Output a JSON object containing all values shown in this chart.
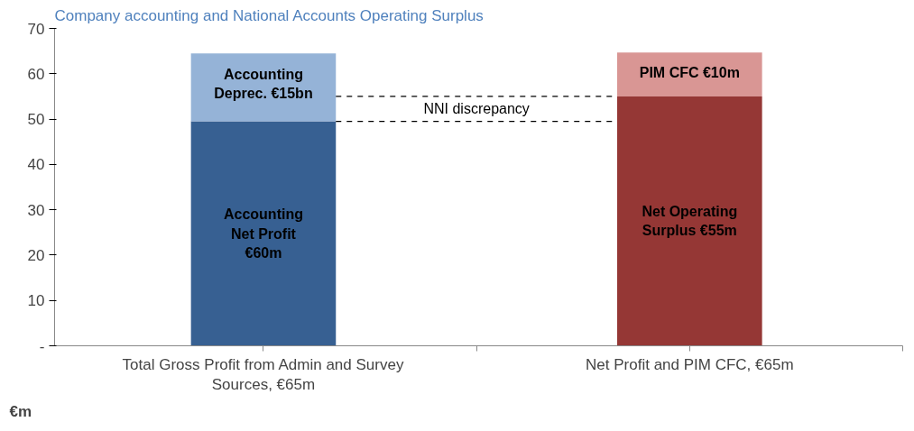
{
  "chart_data": {
    "type": "bar",
    "stacked": true,
    "title": "Company accounting and National Accounts Operating Surplus",
    "ylabel": "€m",
    "categories": [
      "Total Gross Profit from Admin and Survey Sources, €65m",
      "Net Profit and PIM CFC, €65m"
    ],
    "series": [
      {
        "colors": [
          "#376092",
          "#953735"
        ],
        "values": [
          49.5,
          55
        ]
      },
      {
        "colors": [
          "#95b3d7",
          "#d99694"
        ],
        "values": [
          15,
          9.7
        ]
      }
    ],
    "ylim": [
      0,
      70
    ],
    "yticks": [
      {
        "value": 0,
        "label": "-"
      },
      10,
      20,
      30,
      40,
      50,
      60,
      70
    ],
    "grid": false,
    "ref_lines": [
      {
        "axis": "y",
        "value": 55,
        "line_style": "dashed"
      },
      {
        "axis": "y",
        "value": 49.5,
        "line_style": "dashed"
      }
    ],
    "annotations": [
      "Accounting Net Profit €60m",
      "Accounting Deprec. €15bn",
      "Net Operating Surplus €55m",
      "PIM CFC €10m",
      "NNI discrepancy"
    ]
  }
}
